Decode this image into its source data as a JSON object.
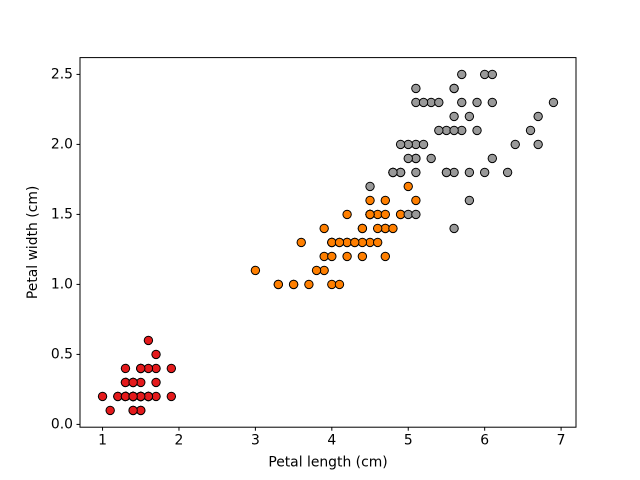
{
  "figure": {
    "background": "#ffffff"
  },
  "chart_data": {
    "type": "scatter",
    "title": "",
    "xlabel": "Petal length (cm)",
    "ylabel": "Petal width (cm)",
    "xlim": [
      0.705,
      7.195
    ],
    "ylim": [
      -0.02,
      2.62
    ],
    "xticks": [
      1,
      2,
      3,
      4,
      5,
      6,
      7
    ],
    "xtick_labels": [
      "1",
      "2",
      "3",
      "4",
      "5",
      "6",
      "7"
    ],
    "yticks": [
      0.0,
      0.5,
      1.0,
      1.5,
      2.0,
      2.5
    ],
    "ytick_labels": [
      "0.0",
      "0.5",
      "1.0",
      "1.5",
      "2.0",
      "2.5"
    ],
    "grid": false,
    "legend": "none",
    "marker": {
      "shape": "circle",
      "radius_px": 4.2,
      "edge_color": "#000000",
      "edge_width": 1
    },
    "series": [
      {
        "name": "red-cluster",
        "color": "#e41a1c",
        "points": [
          [
            1.4,
            0.2
          ],
          [
            1.4,
            0.2
          ],
          [
            1.3,
            0.2
          ],
          [
            1.5,
            0.2
          ],
          [
            1.4,
            0.2
          ],
          [
            1.7,
            0.4
          ],
          [
            1.4,
            0.3
          ],
          [
            1.5,
            0.2
          ],
          [
            1.4,
            0.2
          ],
          [
            1.5,
            0.1
          ],
          [
            1.5,
            0.2
          ],
          [
            1.6,
            0.2
          ],
          [
            1.4,
            0.1
          ],
          [
            1.1,
            0.1
          ],
          [
            1.2,
            0.2
          ],
          [
            1.5,
            0.4
          ],
          [
            1.3,
            0.4
          ],
          [
            1.4,
            0.3
          ],
          [
            1.7,
            0.3
          ],
          [
            1.5,
            0.3
          ],
          [
            1.7,
            0.2
          ],
          [
            1.5,
            0.4
          ],
          [
            1.0,
            0.2
          ],
          [
            1.7,
            0.5
          ],
          [
            1.9,
            0.2
          ],
          [
            1.6,
            0.2
          ],
          [
            1.6,
            0.4
          ],
          [
            1.5,
            0.2
          ],
          [
            1.4,
            0.2
          ],
          [
            1.6,
            0.2
          ],
          [
            1.6,
            0.2
          ],
          [
            1.5,
            0.4
          ],
          [
            1.5,
            0.1
          ],
          [
            1.4,
            0.2
          ],
          [
            1.5,
            0.2
          ],
          [
            1.2,
            0.2
          ],
          [
            1.3,
            0.2
          ],
          [
            1.4,
            0.1
          ],
          [
            1.3,
            0.2
          ],
          [
            1.5,
            0.2
          ],
          [
            1.3,
            0.3
          ],
          [
            1.3,
            0.3
          ],
          [
            1.3,
            0.2
          ],
          [
            1.6,
            0.6
          ],
          [
            1.9,
            0.4
          ],
          [
            1.4,
            0.3
          ],
          [
            1.6,
            0.2
          ],
          [
            1.4,
            0.2
          ],
          [
            1.5,
            0.2
          ],
          [
            1.4,
            0.2
          ]
        ]
      },
      {
        "name": "orange-cluster",
        "color": "#ff7f00",
        "points": [
          [
            4.7,
            1.4
          ],
          [
            4.5,
            1.5
          ],
          [
            4.9,
            1.5
          ],
          [
            4.0,
            1.3
          ],
          [
            4.6,
            1.5
          ],
          [
            4.5,
            1.3
          ],
          [
            4.7,
            1.6
          ],
          [
            3.3,
            1.0
          ],
          [
            4.6,
            1.3
          ],
          [
            3.9,
            1.4
          ],
          [
            3.5,
            1.0
          ],
          [
            4.2,
            1.5
          ],
          [
            4.0,
            1.0
          ],
          [
            4.7,
            1.4
          ],
          [
            3.6,
            1.3
          ],
          [
            4.4,
            1.4
          ],
          [
            4.5,
            1.5
          ],
          [
            4.1,
            1.0
          ],
          [
            4.5,
            1.5
          ],
          [
            3.9,
            1.1
          ],
          [
            4.8,
            1.8
          ],
          [
            4.0,
            1.3
          ],
          [
            4.9,
            1.5
          ],
          [
            4.7,
            1.2
          ],
          [
            4.3,
            1.3
          ],
          [
            4.4,
            1.4
          ],
          [
            4.8,
            1.4
          ],
          [
            5.0,
            1.7
          ],
          [
            4.5,
            1.5
          ],
          [
            3.5,
            1.0
          ],
          [
            3.8,
            1.1
          ],
          [
            3.7,
            1.0
          ],
          [
            3.9,
            1.2
          ],
          [
            5.1,
            1.6
          ],
          [
            4.5,
            1.5
          ],
          [
            4.5,
            1.6
          ],
          [
            4.7,
            1.5
          ],
          [
            4.4,
            1.3
          ],
          [
            4.1,
            1.3
          ],
          [
            4.0,
            1.3
          ],
          [
            4.4,
            1.2
          ],
          [
            4.6,
            1.4
          ],
          [
            4.0,
            1.2
          ],
          [
            3.3,
            1.0
          ],
          [
            4.2,
            1.3
          ],
          [
            4.2,
            1.2
          ],
          [
            4.2,
            1.3
          ],
          [
            4.3,
            1.3
          ],
          [
            3.0,
            1.1
          ],
          [
            4.1,
            1.3
          ]
        ]
      },
      {
        "name": "gray-cluster",
        "color": "#999999",
        "points": [
          [
            6.0,
            2.5
          ],
          [
            5.1,
            1.9
          ],
          [
            5.9,
            2.1
          ],
          [
            5.6,
            1.8
          ],
          [
            5.8,
            2.2
          ],
          [
            6.6,
            2.1
          ],
          [
            4.5,
            1.7
          ],
          [
            6.3,
            1.8
          ],
          [
            5.8,
            1.8
          ],
          [
            6.1,
            2.5
          ],
          [
            5.1,
            2.0
          ],
          [
            5.3,
            1.9
          ],
          [
            5.5,
            2.1
          ],
          [
            5.0,
            2.0
          ],
          [
            5.1,
            2.4
          ],
          [
            5.3,
            2.3
          ],
          [
            5.5,
            1.8
          ],
          [
            6.7,
            2.2
          ],
          [
            6.9,
            2.3
          ],
          [
            5.0,
            1.5
          ],
          [
            5.7,
            2.3
          ],
          [
            4.9,
            2.0
          ],
          [
            6.7,
            2.0
          ],
          [
            4.9,
            1.8
          ],
          [
            5.7,
            2.1
          ],
          [
            6.0,
            1.8
          ],
          [
            4.8,
            1.8
          ],
          [
            4.9,
            1.8
          ],
          [
            5.6,
            2.1
          ],
          [
            5.8,
            1.6
          ],
          [
            6.1,
            1.9
          ],
          [
            6.4,
            2.0
          ],
          [
            5.6,
            2.2
          ],
          [
            5.1,
            1.5
          ],
          [
            5.6,
            1.4
          ],
          [
            6.1,
            2.3
          ],
          [
            5.6,
            2.4
          ],
          [
            5.5,
            1.8
          ],
          [
            4.8,
            1.8
          ],
          [
            5.4,
            2.1
          ],
          [
            5.6,
            2.4
          ],
          [
            5.1,
            2.3
          ],
          [
            5.1,
            1.9
          ],
          [
            5.9,
            2.3
          ],
          [
            5.7,
            2.5
          ],
          [
            5.2,
            2.3
          ],
          [
            5.0,
            1.9
          ],
          [
            5.2,
            2.0
          ],
          [
            5.4,
            2.3
          ],
          [
            5.1,
            1.8
          ]
        ]
      }
    ]
  }
}
